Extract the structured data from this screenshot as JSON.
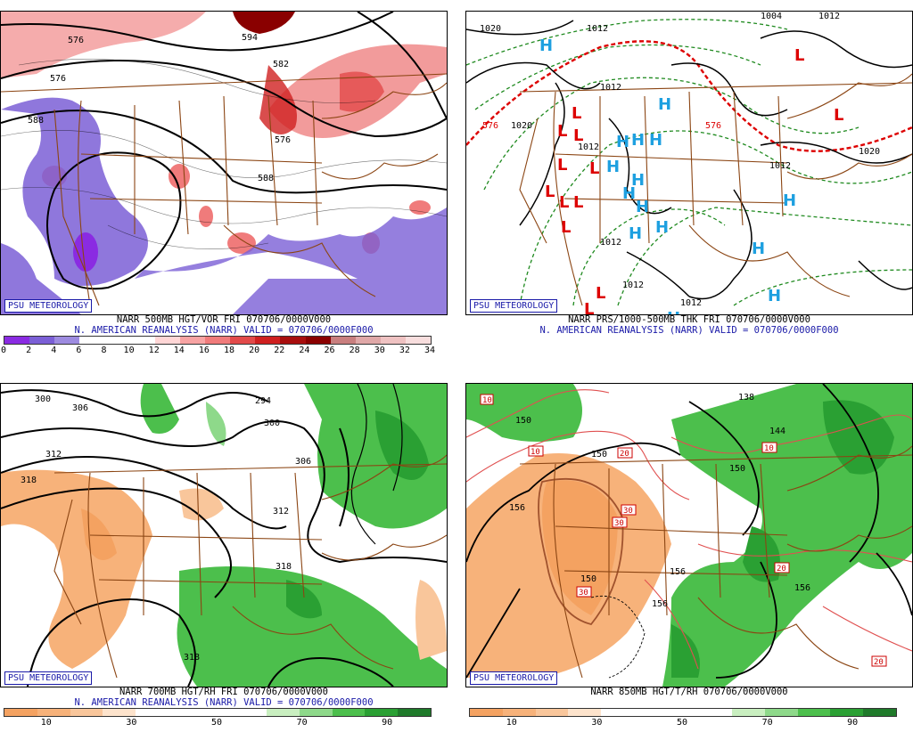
{
  "badge": "PSU METEOROLOGY",
  "panels": [
    {
      "title1": "NARR 500MB HGT/VOR FRI 070706/0000V000",
      "title2": "N. AMERICAN REANALYSIS (NARR) VALID = 070706/0000F000",
      "contour_labels": [
        "576",
        "588",
        "582",
        "594"
      ],
      "colorbar": {
        "colors": [
          "#8a2be2",
          "#7b5fd6",
          "#9d8be0",
          "#ffffff",
          "#ffffff",
          "#ffffff",
          "#ffd6d6",
          "#f7a3a3",
          "#f07b7b",
          "#e24a4a",
          "#cf2020",
          "#a80e0e",
          "#8a0000",
          "#c97f7f",
          "#e0a8a8",
          "#efc2c2",
          "#f8dede"
        ],
        "ticks": [
          "0",
          "2",
          "4",
          "6",
          "8",
          "10",
          "12",
          "14",
          "16",
          "18",
          "20",
          "22",
          "24",
          "26",
          "28",
          "30",
          "32",
          "34"
        ]
      }
    },
    {
      "title1": "NARR PRS/1000-500MB THK FRI 070706/0000V000",
      "title2": "N. AMERICAN REANALYSIS (NARR) VALID = 070706/0000F000",
      "contour_labels": [
        "1020",
        "1012",
        "1004",
        "1012",
        "1012",
        "1012",
        "1020",
        "1012",
        "1012",
        "1020",
        "576",
        "576"
      ],
      "high_label": "H",
      "low_label": "L"
    },
    {
      "title1": "NARR 700MB HGT/RH FRI 070706/0000V000",
      "title2": "N. AMERICAN REANALYSIS (NARR) VALID = 070706/0000F000",
      "contour_labels": [
        "300",
        "306",
        "294",
        "300",
        "312",
        "318",
        "306",
        "312",
        "318",
        "318"
      ],
      "colorbar": {
        "colors": [
          "#f4a261",
          "#f7b27a",
          "#f9c69b",
          "#fde3cc",
          "#ffffff",
          "#ffffff",
          "#ffffff",
          "#ffffff",
          "#c9efc0",
          "#8ed98a",
          "#4cbf4c",
          "#2aa033",
          "#1f7a2a"
        ],
        "ticks": [
          "10",
          "30",
          "50",
          "70",
          "90"
        ]
      }
    },
    {
      "title1": "NARR 850MB HGT/T/RH 070706/0000V000",
      "title2": "",
      "contour_labels": [
        "150",
        "156",
        "150",
        "150",
        "144",
        "138",
        "150",
        "156",
        "156",
        "156"
      ],
      "temp_labels": [
        "10",
        "20",
        "30",
        "30",
        "20",
        "20",
        "10",
        "30",
        "10"
      ],
      "colorbar": {
        "colors": [
          "#f4a261",
          "#f7b27a",
          "#f9c69b",
          "#fde3cc",
          "#ffffff",
          "#ffffff",
          "#ffffff",
          "#ffffff",
          "#c9efc0",
          "#8ed98a",
          "#4cbf4c",
          "#2aa033",
          "#1f7a2a"
        ],
        "ticks": [
          "10",
          "30",
          "50",
          "70",
          "90"
        ]
      }
    }
  ]
}
